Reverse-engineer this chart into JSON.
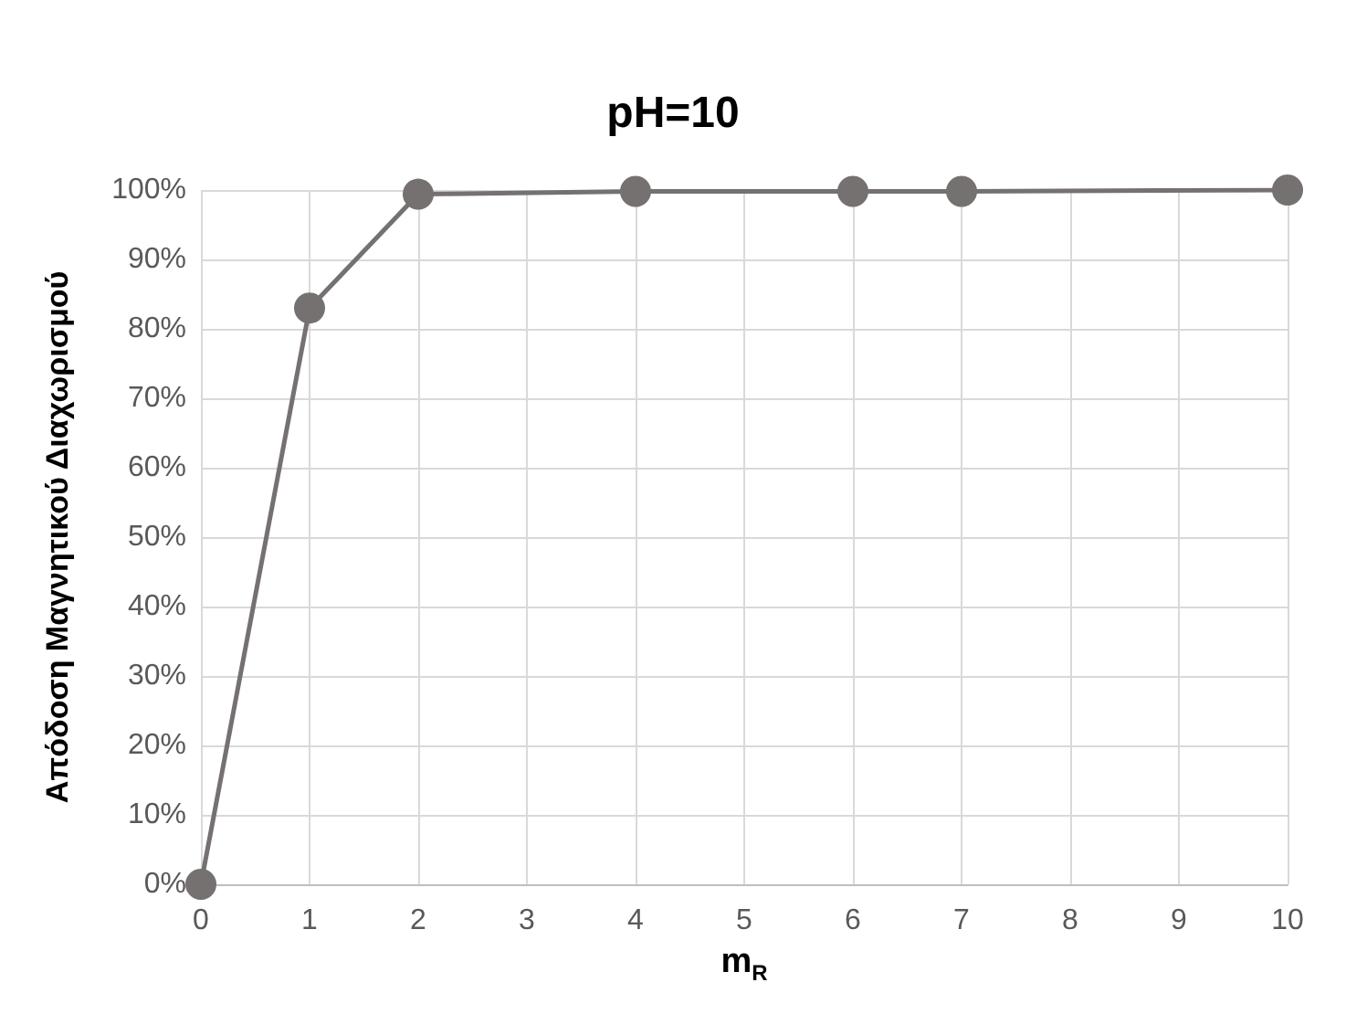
{
  "chart_data": {
    "type": "line",
    "title": "pH=10",
    "xlabel": "m$_{R}$",
    "ylabel": "Απόδοση Μαγνητικού Διαχωρισμού",
    "x": [
      0,
      1,
      2,
      4,
      6,
      7,
      10
    ],
    "series": [
      {
        "color": "#767171",
        "values": [
          0,
          83,
          99.4,
          99.8,
          99.8,
          99.8,
          100
        ]
      }
    ],
    "xlim": [
      0,
      10
    ],
    "xticks": [
      0,
      1,
      2,
      3,
      4,
      5,
      6,
      7,
      8,
      9,
      10
    ],
    "ylim": [
      0,
      100
    ],
    "yticks": [
      {
        "value": 0,
        "label": "0%"
      },
      {
        "value": 10,
        "label": "10%"
      },
      {
        "value": 20,
        "label": "20%"
      },
      {
        "value": 30,
        "label": "30%"
      },
      {
        "value": 40,
        "label": "40%"
      },
      {
        "value": 50,
        "label": "50%"
      },
      {
        "value": 60,
        "label": "60%"
      },
      {
        "value": 70,
        "label": "70%"
      },
      {
        "value": 80,
        "label": "80%"
      },
      {
        "value": 90,
        "label": "90%"
      },
      {
        "value": 100,
        "label": "100%"
      }
    ],
    "grid": true,
    "marker": "circle",
    "line_style": "solid"
  }
}
